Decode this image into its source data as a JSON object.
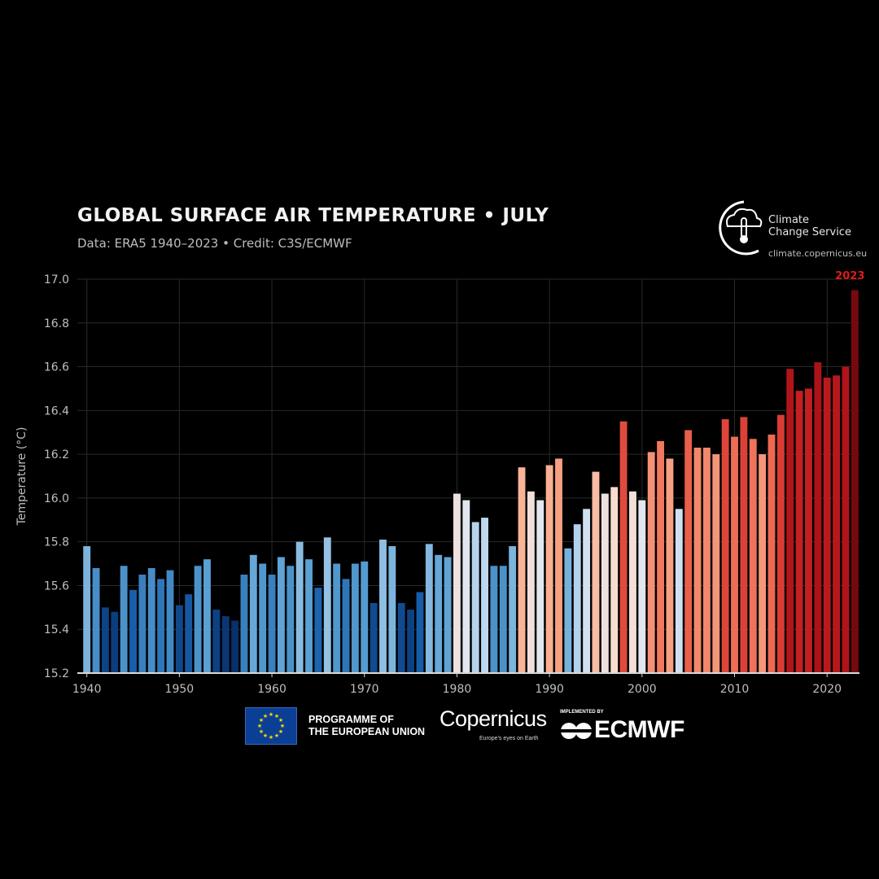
{
  "header": {
    "title": "GLOBAL SURFACE AIR TEMPERATURE • JULY",
    "subtitle": "Data: ERA5 1940–2023 • Credit: C3S/ECMWF"
  },
  "branding": {
    "c3s_name_line1": "Climate",
    "c3s_name_line2": "Change Service",
    "c3s_url": "climate.copernicus.eu",
    "eu_line1": "PROGRAMME OF",
    "eu_line2": "THE EUROPEAN UNION",
    "copernicus": "Copernicus",
    "copernicus_tagline": "Europe's eyes on Earth",
    "ecmwf_implemented": "IMPLEMENTED BY",
    "ecmwf": "ECMWF"
  },
  "colors": {
    "background": "#000000",
    "cold": "#08306b",
    "neutral": "#f7f7f7",
    "warm": "#67000d",
    "highlight_label": "#e01a1a"
  },
  "chart_data": {
    "type": "bar",
    "ylabel": "Temperature (°C)",
    "ylim": [
      15.2,
      17.0
    ],
    "yticks": [
      "15.2",
      "15.4",
      "15.6",
      "15.8",
      "16.0",
      "16.2",
      "16.4",
      "16.6",
      "16.8",
      "17.0"
    ],
    "xticks": [
      "1940",
      "1950",
      "1960",
      "1970",
      "1980",
      "1990",
      "2000",
      "2010",
      "2020"
    ],
    "grid": true,
    "highlight": {
      "year": 2023,
      "label": "2023"
    },
    "x": [
      1940,
      1941,
      1942,
      1943,
      1944,
      1945,
      1946,
      1947,
      1948,
      1949,
      1950,
      1951,
      1952,
      1953,
      1954,
      1955,
      1956,
      1957,
      1958,
      1959,
      1960,
      1961,
      1962,
      1963,
      1964,
      1965,
      1966,
      1967,
      1968,
      1969,
      1970,
      1971,
      1972,
      1973,
      1974,
      1975,
      1976,
      1977,
      1978,
      1979,
      1980,
      1981,
      1982,
      1983,
      1984,
      1985,
      1986,
      1987,
      1988,
      1989,
      1990,
      1991,
      1992,
      1993,
      1994,
      1995,
      1996,
      1997,
      1998,
      1999,
      2000,
      2001,
      2002,
      2003,
      2004,
      2005,
      2006,
      2007,
      2008,
      2009,
      2010,
      2011,
      2012,
      2013,
      2014,
      2015,
      2016,
      2017,
      2018,
      2019,
      2020,
      2021,
      2022,
      2023
    ],
    "values": [
      15.78,
      15.68,
      15.5,
      15.48,
      15.69,
      15.58,
      15.65,
      15.68,
      15.63,
      15.67,
      15.51,
      15.56,
      15.69,
      15.72,
      15.49,
      15.46,
      15.44,
      15.65,
      15.74,
      15.7,
      15.65,
      15.73,
      15.69,
      15.8,
      15.72,
      15.59,
      15.82,
      15.7,
      15.63,
      15.7,
      15.71,
      15.52,
      15.81,
      15.78,
      15.52,
      15.49,
      15.57,
      15.79,
      15.74,
      15.73,
      16.02,
      15.99,
      15.89,
      15.91,
      15.69,
      15.69,
      15.78,
      16.14,
      16.03,
      15.99,
      16.15,
      16.18,
      15.77,
      15.88,
      15.95,
      16.12,
      16.02,
      16.05,
      16.35,
      16.03,
      15.99,
      16.21,
      16.26,
      16.18,
      15.95,
      16.31,
      16.23,
      16.23,
      16.2,
      16.36,
      16.28,
      16.37,
      16.27,
      16.2,
      16.29,
      16.38,
      16.59,
      16.49,
      16.5,
      16.62,
      16.55,
      16.56,
      16.6,
      16.95
    ]
  }
}
